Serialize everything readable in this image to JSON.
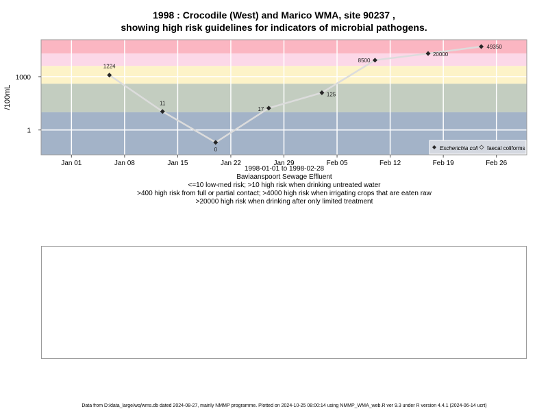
{
  "title_line1": "1998 : Crocodile (West) and Marico WMA, site 90237 ,",
  "title_line2": "showing high risk guidelines for indicators of microbial pathogens.",
  "chart_data": {
    "type": "line",
    "ylabel": "/100mL",
    "y_scale": "log10",
    "ylim": [
      0.04,
      120000
    ],
    "y_ticks": [
      {
        "value": 1,
        "label": "1"
      },
      {
        "value": 1000,
        "label": "1000"
      }
    ],
    "x_range": [
      "1997-12-28",
      "1998-03-02"
    ],
    "x_ticks": [
      {
        "date": "1998-01-01",
        "label": "Jan 01"
      },
      {
        "date": "1998-01-08",
        "label": "Jan 08"
      },
      {
        "date": "1998-01-15",
        "label": "Jan 15"
      },
      {
        "date": "1998-01-22",
        "label": "Jan 22"
      },
      {
        "date": "1998-01-29",
        "label": "Jan 29"
      },
      {
        "date": "1998-02-05",
        "label": "Feb 05"
      },
      {
        "date": "1998-02-12",
        "label": "Feb 12"
      },
      {
        "date": "1998-02-19",
        "label": "Feb 19"
      },
      {
        "date": "1998-02-26",
        "label": "Feb 26"
      }
    ],
    "risk_bands": [
      {
        "from": 20000,
        "to": 120000,
        "color": "#fbb6c2"
      },
      {
        "from": 4000,
        "to": 20000,
        "color": "#fcd8e8"
      },
      {
        "from": 400,
        "to": 4000,
        "color": "#fdf3c8"
      },
      {
        "from": 10,
        "to": 400,
        "color": "#c3cdc0"
      },
      {
        "from": 0.04,
        "to": 10,
        "color": "#a3b3c8"
      }
    ],
    "series": [
      {
        "name": "Escherichia coli",
        "marker": "filled-diamond",
        "points": [
          {
            "date": "1998-01-06",
            "y": 1224,
            "label": "1224"
          },
          {
            "date": "1998-01-13",
            "y": 11,
            "label": "11"
          },
          {
            "date": "1998-01-20",
            "y": 0.2,
            "label": "0"
          },
          {
            "date": "1998-01-27",
            "y": 17,
            "label": "17"
          },
          {
            "date": "1998-02-03",
            "y": 125,
            "label": "125"
          },
          {
            "date": "1998-02-10",
            "y": 8500,
            "label": "8500"
          },
          {
            "date": "1998-02-17",
            "y": 20000,
            "label": "20000"
          },
          {
            "date": "1998-02-24",
            "y": 49350,
            "label": "49350"
          }
        ]
      },
      {
        "name": "faecal coliforms",
        "marker": "open-diamond",
        "points": []
      }
    ],
    "legend_position": "bottom-right",
    "grid": true
  },
  "caption": {
    "date_range": "1998-01-01 to 1998-02-28",
    "site_name": "Baviaanspoort Sewage Effluent",
    "guideline_1": "<=10 low-med risk; >10 high risk when drinking untreated water",
    "guideline_2": ">400 high risk from full or partial contact; >4000 high risk when irrigating crops that are eaten raw",
    "guideline_3": ">20000 high risk when drinking after only limited treatment"
  },
  "footer_text": "Data from D:/data_large/wq/wms.db dated 2024-08-27, mainly NMMP programme. Plotted on 2024-10-25 08:00:14 using NMMP_WMA_web.R ver 9.3 under R version 4.4.1 (2024-06-14 ucrt)",
  "colors": {
    "line": "#dcdcdc",
    "marker": "#262626",
    "grid": "#ffffff",
    "legend_bg": "#d4d8e0"
  }
}
